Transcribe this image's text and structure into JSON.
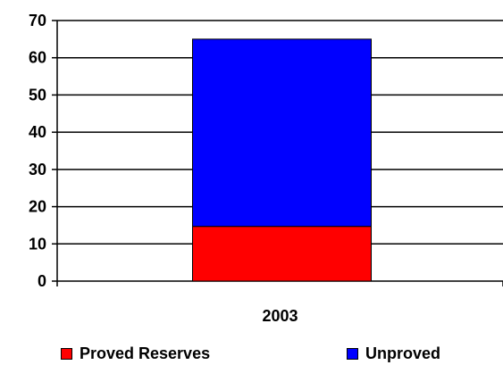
{
  "chart_data": {
    "type": "bar",
    "stacked": true,
    "categories": [
      "2003"
    ],
    "series": [
      {
        "name": "Proved Reserves",
        "values": [
          14.7
        ],
        "color": "#ff0000"
      },
      {
        "name": "Unproved",
        "values": [
          50.3
        ],
        "color": "#0000ff"
      }
    ],
    "ylim": [
      0,
      70
    ],
    "yticks": [
      "0",
      "10",
      "20",
      "30",
      "40",
      "50",
      "60",
      "70"
    ],
    "grid": true,
    "legend": "bottom"
  }
}
